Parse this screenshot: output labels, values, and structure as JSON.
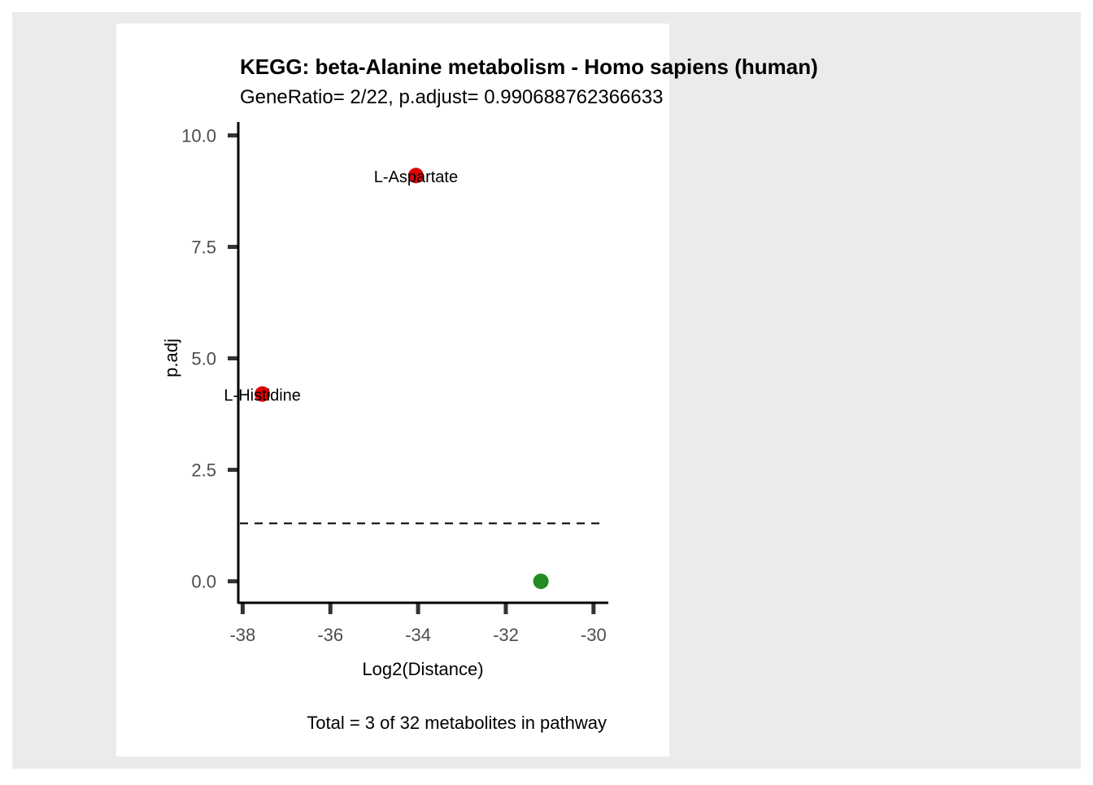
{
  "colors": {
    "outer_background": "#ebebeb",
    "panel_background": "#ffffff",
    "axis": "#000000",
    "tick": "#333333",
    "tick_label": "#4d4d4d",
    "significant_point": "#e00000",
    "nonsignificant_point": "#228b22",
    "threshold_line": "#000000"
  },
  "chart_data": {
    "type": "scatter",
    "title": "KEGG: beta-Alanine metabolism - Homo sapiens (human)",
    "subtitle": "GeneRatio= 2/22, p.adjust= 0.990688762366633",
    "xlabel": "Log2(Distance)",
    "ylabel": "p.adj",
    "caption": "Total = 3 of 32 metabolites in pathway",
    "xlim": [
      -38.1,
      -29.7
    ],
    "ylim": [
      -0.5,
      10.3
    ],
    "x_ticks": [
      -38,
      -36,
      -34,
      -32,
      -30
    ],
    "x_tick_labels": [
      "-38",
      "-36",
      "-34",
      "-32",
      "-30"
    ],
    "y_ticks": [
      0,
      2.5,
      5,
      7.5,
      10
    ],
    "y_tick_labels": [
      "0.0",
      "2.5",
      "5.0",
      "7.5",
      "10.0"
    ],
    "threshold_y": 1.3,
    "grid": false,
    "points": [
      {
        "x": -34.05,
        "y": 9.1,
        "label": "L-Aspartate",
        "significant": true
      },
      {
        "x": -37.55,
        "y": 4.2,
        "label": "L-Histidine",
        "significant": true
      },
      {
        "x": -31.2,
        "y": 0.0,
        "label": "",
        "significant": false
      }
    ]
  }
}
